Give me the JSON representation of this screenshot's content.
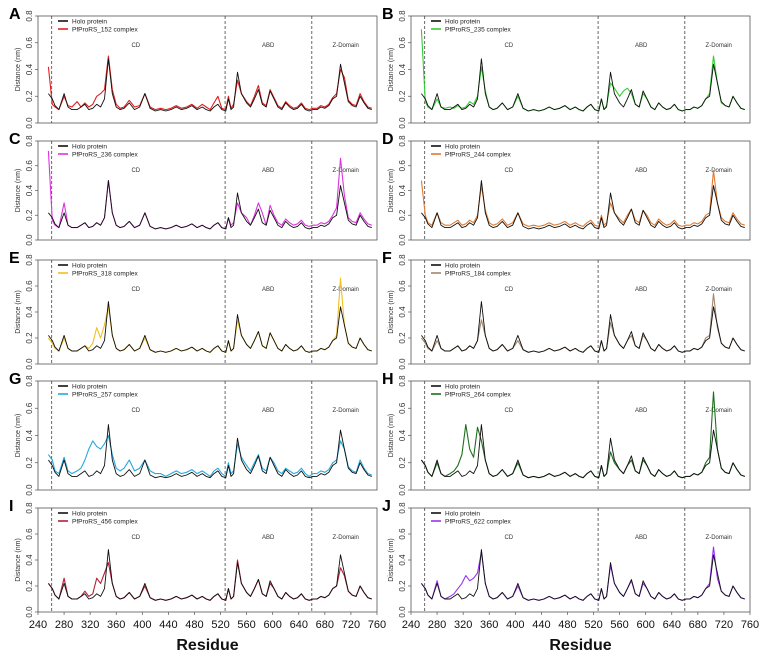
{
  "figure": {
    "xlabel_text": "Residue"
  },
  "chart_data": {
    "type": "line",
    "shared": {
      "xlim": [
        240,
        760
      ],
      "ylim": [
        0,
        0.8
      ],
      "ylabel": "Distance (nm)",
      "yticks": [
        "0.0",
        "0.2",
        "0.4",
        "0.6",
        "0.8"
      ],
      "yticks_values": [
        0,
        0.2,
        0.4,
        0.6,
        0.8
      ],
      "xticks_left": [
        "240",
        "280",
        "320",
        "360",
        "400",
        "440",
        "480",
        "520",
        "560",
        "600",
        "640",
        "680",
        "720",
        "760"
      ],
      "xticks_right": [
        "240",
        "280",
        "320",
        "360",
        "400",
        "440",
        "480",
        "520",
        "560",
        "600",
        "640",
        "680",
        "720",
        "760"
      ],
      "xticks_values": [
        240,
        280,
        320,
        360,
        400,
        440,
        480,
        520,
        560,
        600,
        640,
        680,
        720,
        760
      ],
      "domain_boundaries": [
        261,
        527,
        660
      ],
      "domains": [
        {
          "name": "CD",
          "x": 390
        },
        {
          "name": "ABD",
          "x": 593
        },
        {
          "name": "Z-Domain",
          "x": 712
        }
      ],
      "reference_series": {
        "name": "Holo protein",
        "color": "#111111"
      },
      "residue_x": [
        256,
        262,
        266,
        272,
        280,
        286,
        292,
        300,
        306,
        312,
        318,
        324,
        330,
        336,
        342,
        348,
        354,
        360,
        366,
        372,
        380,
        388,
        396,
        404,
        412,
        420,
        428,
        436,
        444,
        452,
        460,
        468,
        476,
        484,
        492,
        498,
        504,
        510,
        516,
        522,
        528,
        532,
        536,
        540,
        546,
        552,
        560,
        566,
        572,
        578,
        584,
        590,
        596,
        602,
        608,
        614,
        620,
        626,
        632,
        638,
        644,
        650,
        656,
        662,
        668,
        674,
        680,
        686,
        692,
        698,
        704,
        710,
        716,
        722,
        728,
        734,
        740,
        746,
        752
      ],
      "holo_values": [
        0.22,
        0.18,
        0.13,
        0.1,
        0.22,
        0.12,
        0.1,
        0.1,
        0.12,
        0.14,
        0.1,
        0.11,
        0.14,
        0.12,
        0.18,
        0.48,
        0.22,
        0.12,
        0.1,
        0.11,
        0.15,
        0.1,
        0.12,
        0.22,
        0.11,
        0.09,
        0.1,
        0.09,
        0.1,
        0.12,
        0.1,
        0.11,
        0.13,
        0.1,
        0.12,
        0.1,
        0.09,
        0.12,
        0.14,
        0.1,
        0.09,
        0.18,
        0.1,
        0.12,
        0.38,
        0.22,
        0.15,
        0.12,
        0.18,
        0.25,
        0.14,
        0.12,
        0.24,
        0.18,
        0.12,
        0.1,
        0.15,
        0.12,
        0.1,
        0.11,
        0.14,
        0.1,
        0.09,
        0.1,
        0.1,
        0.12,
        0.11,
        0.13,
        0.18,
        0.2,
        0.44,
        0.3,
        0.16,
        0.13,
        0.12,
        0.2,
        0.15,
        0.11,
        0.1
      ]
    },
    "panels": [
      {
        "label": "A",
        "complex_name": "PfProRS_152 complex",
        "color": "#e02020",
        "values": [
          0.42,
          0.14,
          0.12,
          0.1,
          0.2,
          0.13,
          0.12,
          0.16,
          0.12,
          0.15,
          0.12,
          0.14,
          0.2,
          0.22,
          0.25,
          0.5,
          0.25,
          0.14,
          0.11,
          0.12,
          0.17,
          0.12,
          0.13,
          0.22,
          0.12,
          0.1,
          0.11,
          0.1,
          0.11,
          0.13,
          0.11,
          0.12,
          0.14,
          0.11,
          0.14,
          0.12,
          0.1,
          0.15,
          0.2,
          0.11,
          0.1,
          0.2,
          0.11,
          0.14,
          0.32,
          0.22,
          0.16,
          0.13,
          0.2,
          0.28,
          0.15,
          0.13,
          0.25,
          0.19,
          0.13,
          0.11,
          0.16,
          0.13,
          0.11,
          0.12,
          0.15,
          0.11,
          0.1,
          0.11,
          0.11,
          0.13,
          0.12,
          0.14,
          0.19,
          0.22,
          0.4,
          0.34,
          0.17,
          0.14,
          0.13,
          0.22,
          0.16,
          0.12,
          0.11
        ]
      },
      {
        "label": "B",
        "complex_name": "PfProRS_235 complex",
        "color": "#33cc33",
        "values": [
          0.7,
          0.16,
          0.12,
          0.1,
          0.18,
          0.12,
          0.11,
          0.12,
          0.11,
          0.13,
          0.11,
          0.12,
          0.16,
          0.14,
          0.2,
          0.42,
          0.24,
          0.12,
          0.1,
          0.11,
          0.15,
          0.1,
          0.12,
          0.2,
          0.11,
          0.09,
          0.1,
          0.09,
          0.1,
          0.12,
          0.1,
          0.11,
          0.13,
          0.1,
          0.12,
          0.1,
          0.09,
          0.12,
          0.14,
          0.1,
          0.09,
          0.18,
          0.1,
          0.13,
          0.3,
          0.26,
          0.2,
          0.24,
          0.26,
          0.22,
          0.14,
          0.12,
          0.22,
          0.18,
          0.12,
          0.1,
          0.15,
          0.12,
          0.1,
          0.11,
          0.14,
          0.1,
          0.09,
          0.1,
          0.1,
          0.12,
          0.11,
          0.13,
          0.18,
          0.22,
          0.5,
          0.3,
          0.15,
          0.13,
          0.12,
          0.2,
          0.15,
          0.11,
          0.1
        ]
      },
      {
        "label": "C",
        "complex_name": "PfProRS_236 complex",
        "color": "#dd33dd",
        "values": [
          0.72,
          0.16,
          0.12,
          0.1,
          0.3,
          0.12,
          0.1,
          0.1,
          0.12,
          0.14,
          0.1,
          0.11,
          0.14,
          0.12,
          0.18,
          0.48,
          0.22,
          0.12,
          0.1,
          0.11,
          0.15,
          0.1,
          0.12,
          0.22,
          0.11,
          0.09,
          0.1,
          0.09,
          0.1,
          0.12,
          0.1,
          0.11,
          0.13,
          0.1,
          0.12,
          0.1,
          0.09,
          0.12,
          0.14,
          0.1,
          0.09,
          0.18,
          0.12,
          0.14,
          0.3,
          0.22,
          0.18,
          0.12,
          0.2,
          0.3,
          0.22,
          0.12,
          0.28,
          0.2,
          0.14,
          0.12,
          0.17,
          0.14,
          0.12,
          0.13,
          0.16,
          0.12,
          0.11,
          0.12,
          0.12,
          0.14,
          0.13,
          0.15,
          0.2,
          0.26,
          0.66,
          0.36,
          0.18,
          0.15,
          0.14,
          0.22,
          0.17,
          0.13,
          0.12
        ]
      },
      {
        "label": "D",
        "complex_name": "PfProRS_244 complex",
        "color": "#e07a30",
        "values": [
          0.48,
          0.2,
          0.14,
          0.12,
          0.22,
          0.14,
          0.12,
          0.12,
          0.14,
          0.16,
          0.12,
          0.13,
          0.16,
          0.14,
          0.2,
          0.44,
          0.24,
          0.14,
          0.12,
          0.13,
          0.17,
          0.12,
          0.14,
          0.22,
          0.13,
          0.11,
          0.12,
          0.11,
          0.12,
          0.14,
          0.12,
          0.13,
          0.15,
          0.12,
          0.14,
          0.12,
          0.11,
          0.14,
          0.16,
          0.12,
          0.11,
          0.2,
          0.12,
          0.14,
          0.3,
          0.22,
          0.17,
          0.14,
          0.2,
          0.25,
          0.16,
          0.14,
          0.24,
          0.2,
          0.14,
          0.12,
          0.17,
          0.14,
          0.12,
          0.13,
          0.16,
          0.12,
          0.11,
          0.12,
          0.12,
          0.14,
          0.13,
          0.15,
          0.2,
          0.22,
          0.56,
          0.3,
          0.18,
          0.15,
          0.14,
          0.22,
          0.17,
          0.13,
          0.12
        ]
      },
      {
        "label": "E",
        "complex_name": "PfProRS_318 complex",
        "color": "#f0c020",
        "values": [
          0.2,
          0.16,
          0.12,
          0.1,
          0.2,
          0.12,
          0.1,
          0.1,
          0.12,
          0.14,
          0.12,
          0.16,
          0.28,
          0.2,
          0.3,
          0.44,
          0.22,
          0.12,
          0.1,
          0.11,
          0.15,
          0.1,
          0.12,
          0.2,
          0.11,
          0.09,
          0.1,
          0.09,
          0.1,
          0.12,
          0.1,
          0.11,
          0.13,
          0.1,
          0.12,
          0.1,
          0.09,
          0.12,
          0.14,
          0.1,
          0.09,
          0.18,
          0.1,
          0.12,
          0.34,
          0.22,
          0.15,
          0.12,
          0.18,
          0.25,
          0.14,
          0.12,
          0.24,
          0.18,
          0.12,
          0.1,
          0.15,
          0.12,
          0.1,
          0.11,
          0.14,
          0.1,
          0.09,
          0.1,
          0.1,
          0.12,
          0.11,
          0.13,
          0.18,
          0.22,
          0.66,
          0.3,
          0.16,
          0.13,
          0.12,
          0.2,
          0.15,
          0.11,
          0.1
        ]
      },
      {
        "label": "F",
        "complex_name": "PfProRS_184 complex",
        "color": "#a08870",
        "values": [
          0.2,
          0.16,
          0.12,
          0.1,
          0.18,
          0.12,
          0.1,
          0.1,
          0.12,
          0.14,
          0.1,
          0.11,
          0.14,
          0.12,
          0.18,
          0.34,
          0.22,
          0.12,
          0.1,
          0.11,
          0.15,
          0.1,
          0.12,
          0.18,
          0.11,
          0.09,
          0.1,
          0.09,
          0.1,
          0.12,
          0.1,
          0.11,
          0.13,
          0.1,
          0.12,
          0.1,
          0.09,
          0.12,
          0.14,
          0.1,
          0.09,
          0.18,
          0.1,
          0.12,
          0.32,
          0.22,
          0.15,
          0.12,
          0.18,
          0.22,
          0.14,
          0.12,
          0.22,
          0.18,
          0.12,
          0.1,
          0.15,
          0.12,
          0.1,
          0.11,
          0.14,
          0.1,
          0.09,
          0.1,
          0.1,
          0.12,
          0.11,
          0.13,
          0.2,
          0.22,
          0.54,
          0.28,
          0.16,
          0.13,
          0.12,
          0.2,
          0.15,
          0.11,
          0.1
        ]
      },
      {
        "label": "G",
        "complex_name": "PfProRS_257 complex",
        "color": "#22aadd",
        "values": [
          0.26,
          0.22,
          0.14,
          0.12,
          0.24,
          0.14,
          0.12,
          0.14,
          0.16,
          0.22,
          0.3,
          0.36,
          0.32,
          0.3,
          0.34,
          0.4,
          0.26,
          0.16,
          0.14,
          0.16,
          0.22,
          0.14,
          0.16,
          0.22,
          0.14,
          0.12,
          0.12,
          0.1,
          0.12,
          0.14,
          0.12,
          0.13,
          0.15,
          0.12,
          0.14,
          0.12,
          0.1,
          0.14,
          0.16,
          0.12,
          0.1,
          0.2,
          0.12,
          0.14,
          0.34,
          0.24,
          0.18,
          0.14,
          0.2,
          0.26,
          0.16,
          0.14,
          0.24,
          0.2,
          0.14,
          0.12,
          0.16,
          0.14,
          0.12,
          0.13,
          0.16,
          0.12,
          0.1,
          0.12,
          0.12,
          0.14,
          0.13,
          0.15,
          0.2,
          0.22,
          0.36,
          0.3,
          0.17,
          0.14,
          0.13,
          0.22,
          0.16,
          0.12,
          0.11
        ]
      },
      {
        "label": "H",
        "complex_name": "PfProRS_264 complex",
        "color": "#1f6e1f",
        "values": [
          0.22,
          0.18,
          0.13,
          0.1,
          0.2,
          0.12,
          0.1,
          0.12,
          0.14,
          0.18,
          0.26,
          0.48,
          0.3,
          0.24,
          0.46,
          0.36,
          0.22,
          0.12,
          0.1,
          0.11,
          0.15,
          0.1,
          0.12,
          0.2,
          0.11,
          0.09,
          0.1,
          0.09,
          0.1,
          0.12,
          0.1,
          0.11,
          0.13,
          0.1,
          0.12,
          0.1,
          0.09,
          0.12,
          0.14,
          0.1,
          0.09,
          0.18,
          0.1,
          0.12,
          0.28,
          0.2,
          0.15,
          0.12,
          0.18,
          0.22,
          0.14,
          0.12,
          0.22,
          0.18,
          0.12,
          0.1,
          0.15,
          0.12,
          0.1,
          0.11,
          0.14,
          0.1,
          0.09,
          0.1,
          0.1,
          0.12,
          0.11,
          0.13,
          0.2,
          0.24,
          0.72,
          0.3,
          0.16,
          0.13,
          0.12,
          0.2,
          0.15,
          0.11,
          0.1
        ]
      },
      {
        "label": "I",
        "complex_name": "PfProRS_456 complex",
        "color": "#b0203a",
        "values": [
          0.22,
          0.18,
          0.13,
          0.1,
          0.26,
          0.12,
          0.1,
          0.1,
          0.12,
          0.16,
          0.12,
          0.14,
          0.26,
          0.22,
          0.3,
          0.38,
          0.22,
          0.12,
          0.1,
          0.11,
          0.15,
          0.1,
          0.12,
          0.2,
          0.11,
          0.09,
          0.1,
          0.09,
          0.1,
          0.12,
          0.1,
          0.11,
          0.13,
          0.1,
          0.12,
          0.1,
          0.09,
          0.12,
          0.14,
          0.1,
          0.09,
          0.18,
          0.1,
          0.12,
          0.4,
          0.22,
          0.15,
          0.12,
          0.18,
          0.25,
          0.14,
          0.12,
          0.22,
          0.18,
          0.12,
          0.1,
          0.15,
          0.12,
          0.1,
          0.11,
          0.14,
          0.1,
          0.09,
          0.1,
          0.1,
          0.12,
          0.11,
          0.13,
          0.18,
          0.2,
          0.34,
          0.28,
          0.16,
          0.13,
          0.12,
          0.2,
          0.15,
          0.11,
          0.1
        ]
      },
      {
        "label": "J",
        "complex_name": "PfProRS_622 complex",
        "color": "#9933ee",
        "values": [
          0.22,
          0.18,
          0.13,
          0.1,
          0.24,
          0.12,
          0.1,
          0.12,
          0.14,
          0.18,
          0.22,
          0.28,
          0.24,
          0.26,
          0.3,
          0.46,
          0.22,
          0.12,
          0.1,
          0.11,
          0.15,
          0.1,
          0.12,
          0.2,
          0.11,
          0.09,
          0.1,
          0.09,
          0.1,
          0.12,
          0.1,
          0.11,
          0.13,
          0.1,
          0.12,
          0.1,
          0.09,
          0.12,
          0.14,
          0.1,
          0.09,
          0.18,
          0.1,
          0.12,
          0.36,
          0.22,
          0.15,
          0.12,
          0.18,
          0.24,
          0.14,
          0.12,
          0.22,
          0.18,
          0.12,
          0.1,
          0.15,
          0.12,
          0.1,
          0.11,
          0.14,
          0.1,
          0.09,
          0.1,
          0.1,
          0.12,
          0.11,
          0.13,
          0.18,
          0.22,
          0.5,
          0.26,
          0.16,
          0.13,
          0.12,
          0.2,
          0.15,
          0.11,
          0.1
        ]
      }
    ]
  }
}
